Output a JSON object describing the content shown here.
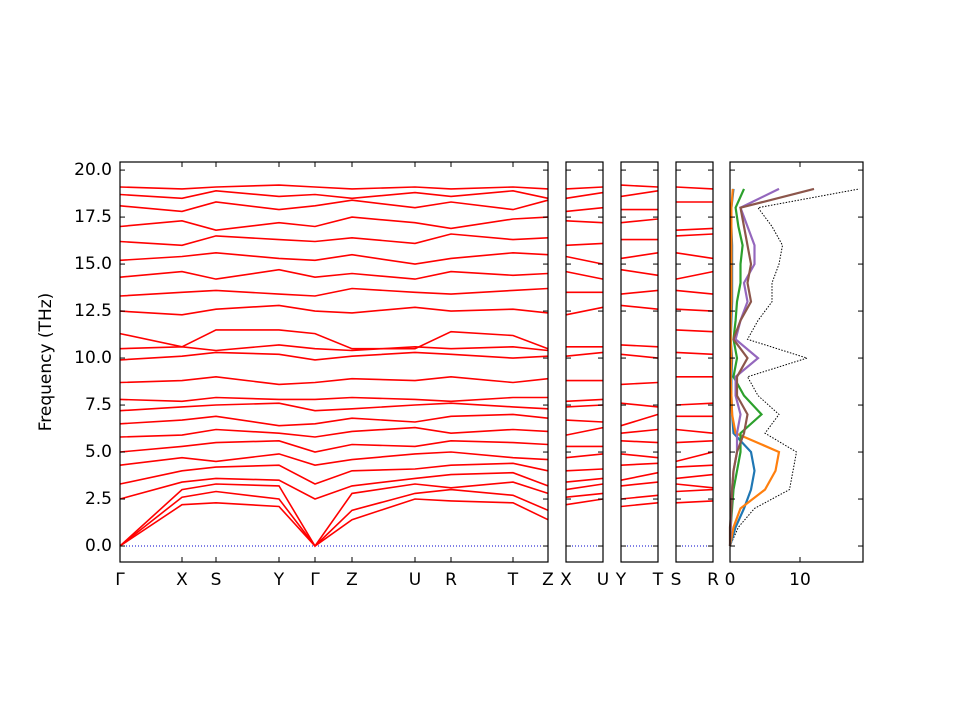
{
  "chart_data": [
    {
      "type": "band",
      "ylabel": "Frequency (THz)",
      "color": "#ff0000",
      "hline": 0,
      "hline_color": "#0000cc",
      "xlim": [
        0,
        4.28
      ],
      "ylim": [
        -0.85,
        20.43
      ],
      "xticks": [
        {
          "value": 0,
          "label": "Γ"
        },
        {
          "value": 0.62,
          "label": "X"
        },
        {
          "value": 0.96,
          "label": "S"
        },
        {
          "value": 1.59,
          "label": "Y"
        },
        {
          "value": 1.95,
          "label": "Γ"
        },
        {
          "value": 2.32,
          "label": "Z"
        },
        {
          "value": 2.95,
          "label": "U"
        },
        {
          "value": 3.31,
          "label": "R"
        },
        {
          "value": 3.93,
          "label": "T"
        },
        {
          "value": 4.28,
          "label": "Z"
        }
      ],
      "yticks": [
        {
          "value": 0,
          "label": "0.0"
        },
        2.5,
        {
          "value": 5,
          "label": "5.0"
        },
        7.5,
        {
          "value": 10,
          "label": "10.0"
        },
        12.5,
        {
          "value": 15,
          "label": "15.0"
        },
        17.5,
        {
          "value": 20,
          "label": "20.0"
        }
      ],
      "x": [
        0,
        0.62,
        0.96,
        1.59,
        1.95,
        2.32,
        2.95,
        3.31,
        3.93,
        4.28
      ],
      "bands": [
        [
          0,
          2.2,
          2.3,
          2.1,
          0,
          1.4,
          2.5,
          2.4,
          2.3,
          1.4
        ],
        [
          0,
          2.6,
          2.9,
          2.5,
          0,
          1.9,
          2.8,
          3.0,
          2.7,
          1.9
        ],
        [
          0,
          3.0,
          3.3,
          3.2,
          0,
          2.8,
          3.3,
          3.1,
          3.4,
          2.8
        ],
        [
          2.5,
          3.4,
          3.6,
          3.5,
          2.5,
          3.2,
          3.6,
          3.8,
          3.9,
          3.2
        ],
        [
          3.3,
          4.0,
          4.2,
          4.3,
          3.3,
          4.0,
          4.1,
          4.3,
          4.4,
          4.0
        ],
        [
          4.3,
          4.7,
          4.5,
          4.9,
          4.3,
          4.6,
          4.9,
          5.0,
          4.7,
          4.6
        ],
        [
          5.0,
          5.3,
          5.5,
          5.6,
          5.0,
          5.4,
          5.3,
          5.6,
          5.5,
          5.4
        ],
        [
          5.8,
          5.9,
          6.2,
          6.0,
          5.8,
          6.1,
          6.3,
          6.0,
          6.2,
          6.1
        ],
        [
          6.5,
          6.7,
          6.9,
          6.4,
          6.5,
          6.8,
          6.6,
          6.9,
          7.0,
          6.8
        ],
        [
          7.2,
          7.4,
          7.5,
          7.6,
          7.2,
          7.3,
          7.5,
          7.6,
          7.4,
          7.3
        ],
        [
          7.8,
          7.7,
          7.9,
          7.8,
          7.8,
          7.9,
          7.8,
          7.7,
          7.9,
          7.9
        ],
        [
          8.7,
          8.8,
          9.0,
          8.6,
          8.7,
          8.9,
          8.8,
          9.0,
          8.7,
          8.9
        ],
        [
          9.9,
          10.1,
          10.3,
          10.2,
          9.9,
          10.1,
          10.3,
          10.2,
          10.0,
          10.1
        ],
        [
          10.5,
          10.6,
          10.4,
          10.7,
          10.5,
          10.4,
          10.6,
          10.5,
          10.6,
          10.4
        ],
        [
          11.3,
          10.6,
          11.5,
          11.5,
          11.3,
          10.5,
          10.5,
          11.4,
          11.2,
          10.5
        ],
        [
          12.5,
          12.3,
          12.6,
          12.8,
          12.5,
          12.4,
          12.7,
          12.5,
          12.6,
          12.4
        ],
        [
          13.3,
          13.5,
          13.6,
          13.4,
          13.3,
          13.7,
          13.5,
          13.4,
          13.6,
          13.7
        ],
        [
          14.3,
          14.6,
          14.2,
          14.7,
          14.3,
          14.5,
          14.2,
          14.6,
          14.4,
          14.5
        ],
        [
          15.2,
          15.4,
          15.6,
          15.3,
          15.2,
          15.5,
          15.0,
          15.3,
          15.6,
          15.5
        ],
        [
          16.2,
          16.0,
          16.5,
          16.3,
          16.2,
          16.4,
          16.1,
          16.6,
          16.3,
          16.4
        ],
        [
          17.0,
          17.3,
          16.8,
          17.2,
          17.0,
          17.5,
          17.2,
          16.9,
          17.4,
          17.5
        ],
        [
          18.1,
          17.8,
          18.3,
          17.9,
          18.1,
          18.4,
          18.0,
          18.3,
          17.9,
          18.4
        ],
        [
          18.7,
          18.5,
          18.9,
          18.6,
          18.7,
          18.5,
          18.8,
          18.6,
          18.9,
          18.5
        ],
        [
          19.1,
          19.0,
          19.1,
          19.2,
          19.1,
          19.0,
          19.1,
          19.0,
          19.1,
          19.0
        ]
      ]
    },
    {
      "type": "band",
      "color": "#ff0000",
      "hline": 0,
      "hline_color": "#0000cc",
      "xlim": [
        0,
        1
      ],
      "ylim": [
        -0.85,
        20.43
      ],
      "xticks": [
        {
          "value": 0,
          "label": "X"
        },
        {
          "value": 1,
          "label": "U"
        }
      ],
      "yticks": [
        0,
        2.5,
        5,
        7.5,
        10,
        12.5,
        15,
        17.5,
        20
      ],
      "x": [
        0,
        1
      ],
      "bands": [
        [
          2.2,
          2.5
        ],
        [
          2.6,
          2.8
        ],
        [
          3.0,
          3.3
        ],
        [
          3.4,
          3.6
        ],
        [
          4.0,
          4.1
        ],
        [
          4.7,
          4.9
        ],
        [
          5.3,
          5.3
        ],
        [
          5.9,
          6.3
        ],
        [
          6.7,
          6.6
        ],
        [
          7.4,
          7.5
        ],
        [
          7.7,
          7.8
        ],
        [
          8.8,
          8.8
        ],
        [
          10.1,
          10.3
        ],
        [
          10.6,
          10.6
        ],
        [
          12.3,
          12.7
        ],
        [
          13.5,
          13.5
        ],
        [
          14.6,
          14.2
        ],
        [
          15.4,
          15.0
        ],
        [
          16.0,
          16.1
        ],
        [
          17.3,
          17.2
        ],
        [
          17.8,
          18.0
        ],
        [
          18.5,
          18.8
        ],
        [
          19.0,
          19.1
        ]
      ]
    },
    {
      "type": "band",
      "color": "#ff0000",
      "hline": 0,
      "hline_color": "#0000cc",
      "xlim": [
        0,
        1
      ],
      "ylim": [
        -0.85,
        20.43
      ],
      "xticks": [
        {
          "value": 0,
          "label": "Y"
        },
        {
          "value": 1,
          "label": "T"
        }
      ],
      "yticks": [
        0,
        2.5,
        5,
        7.5,
        10,
        12.5,
        15,
        17.5,
        20
      ],
      "x": [
        0,
        1
      ],
      "bands": [
        [
          2.1,
          2.3
        ],
        [
          2.5,
          2.7
        ],
        [
          3.2,
          3.4
        ],
        [
          3.5,
          3.9
        ],
        [
          4.3,
          4.4
        ],
        [
          4.9,
          4.7
        ],
        [
          5.6,
          5.5
        ],
        [
          6.0,
          6.2
        ],
        [
          6.4,
          7.0
        ],
        [
          7.6,
          7.4
        ],
        [
          8.6,
          8.7
        ],
        [
          10.2,
          10.0
        ],
        [
          10.7,
          10.6
        ],
        [
          12.8,
          12.6
        ],
        [
          13.4,
          13.6
        ],
        [
          14.7,
          14.4
        ],
        [
          15.3,
          15.6
        ],
        [
          16.3,
          16.3
        ],
        [
          17.2,
          17.4
        ],
        [
          17.9,
          17.9
        ],
        [
          18.6,
          18.9
        ],
        [
          19.2,
          19.1
        ]
      ]
    },
    {
      "type": "band",
      "color": "#ff0000",
      "hline": 0,
      "hline_color": "#0000cc",
      "xlim": [
        0,
        1
      ],
      "ylim": [
        -0.85,
        20.43
      ],
      "xticks": [
        {
          "value": 0,
          "label": "S"
        },
        {
          "value": 1,
          "label": "R"
        }
      ],
      "yticks": [
        0,
        2.5,
        5,
        7.5,
        10,
        12.5,
        15,
        17.5,
        20
      ],
      "x": [
        0,
        1
      ],
      "bands": [
        [
          2.3,
          2.4
        ],
        [
          2.9,
          3.0
        ],
        [
          3.3,
          3.1
        ],
        [
          3.6,
          3.8
        ],
        [
          4.2,
          4.3
        ],
        [
          4.5,
          5.0
        ],
        [
          5.5,
          5.6
        ],
        [
          6.2,
          6.0
        ],
        [
          6.9,
          6.9
        ],
        [
          7.5,
          7.6
        ],
        [
          9.0,
          9.0
        ],
        [
          10.3,
          10.2
        ],
        [
          11.5,
          11.4
        ],
        [
          12.6,
          12.5
        ],
        [
          13.6,
          13.4
        ],
        [
          14.2,
          14.6
        ],
        [
          15.6,
          15.3
        ],
        [
          16.5,
          16.6
        ],
        [
          16.8,
          16.9
        ],
        [
          18.3,
          18.3
        ],
        [
          19.1,
          19.0
        ]
      ]
    },
    {
      "type": "dos",
      "xlim": [
        0,
        19
      ],
      "ylim": [
        -0.85,
        20.43
      ],
      "xticks": [
        0,
        10
      ],
      "yticks": [
        0,
        2.5,
        5,
        7.5,
        10,
        12.5,
        15,
        17.5,
        20
      ],
      "frequencies": [
        0,
        1,
        2,
        3,
        4,
        5,
        6,
        7,
        8,
        9,
        10,
        11,
        12,
        13,
        14,
        15,
        16,
        17,
        18,
        19
      ],
      "series": [
        {
          "color": "#000000",
          "dotted": true,
          "values": [
            0,
            1.2,
            3.5,
            8.5,
            9,
            9.5,
            5,
            7,
            4,
            2.5,
            11,
            2.5,
            4,
            6,
            6,
            7,
            7.5,
            6,
            4,
            18.5
          ]
        },
        {
          "color": "#1f77b4",
          "values": [
            0,
            0.8,
            2,
            3,
            3.5,
            3,
            0.5,
            0.3,
            0.2,
            0.2,
            0.3,
            0.1,
            0.2,
            0.3,
            0.3,
            0.3,
            0.3,
            0.2,
            0.2,
            0.5
          ]
        },
        {
          "color": "#ff7f0e",
          "values": [
            0,
            0.5,
            1.5,
            5,
            6.5,
            7,
            0.8,
            0.3,
            0.2,
            0.1,
            0.2,
            0.1,
            0.1,
            0.2,
            0.2,
            0.2,
            0.2,
            0.2,
            0.2,
            0.4
          ]
        },
        {
          "color": "#2ca02c",
          "values": [
            0,
            0.1,
            0.3,
            0.5,
            1,
            1.5,
            1.5,
            4.5,
            2,
            0.5,
            1,
            0.5,
            0.8,
            1,
            1.5,
            1.5,
            1.8,
            1.2,
            0.8,
            2
          ]
        },
        {
          "color": "#9467bd",
          "values": [
            0,
            0.1,
            0.2,
            0.3,
            0.5,
            1,
            1,
            1.5,
            0.8,
            0.8,
            4,
            0.8,
            1.5,
            2.5,
            2,
            3.5,
            3.5,
            2.5,
            1.5,
            7
          ]
        },
        {
          "color": "#8c564b",
          "values": [
            0,
            0,
            0.2,
            0.3,
            0.5,
            1,
            2,
            2.5,
            1,
            1,
            2.5,
            0.5,
            1.5,
            3,
            2.5,
            3,
            2.5,
            2,
            1.5,
            12
          ]
        }
      ]
    }
  ]
}
